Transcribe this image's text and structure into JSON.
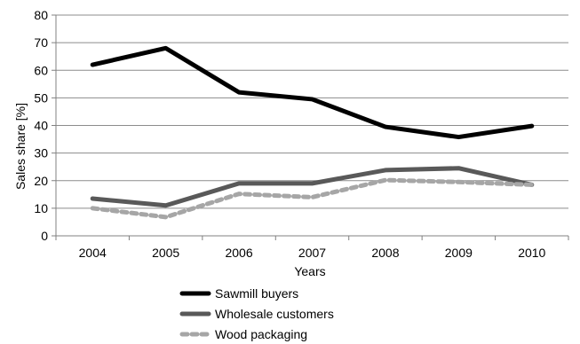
{
  "chart_data": {
    "type": "line",
    "title": "",
    "xlabel": "Years",
    "ylabel": "Sales share [%]",
    "ylim": [
      0,
      80
    ],
    "yticks": [
      0,
      10,
      20,
      30,
      40,
      50,
      60,
      70,
      80
    ],
    "categories": [
      "2004",
      "2005",
      "2006",
      "2007",
      "2008",
      "2009",
      "2010"
    ],
    "grid": "horizontal",
    "legend_position": "bottom",
    "series": [
      {
        "name": "Sawmill buyers",
        "values": [
          62,
          68,
          52,
          49.5,
          39.5,
          35.8,
          39.8
        ],
        "color": "#000000",
        "style": "solid"
      },
      {
        "name": "Wholesale customers",
        "values": [
          13.5,
          11,
          19,
          19,
          23.8,
          24.5,
          18.5
        ],
        "color": "#595959",
        "style": "solid"
      },
      {
        "name": "Wood packaging",
        "values": [
          10,
          6.8,
          15.2,
          14,
          20.2,
          19.5,
          18.5
        ],
        "color": "#a6a6a6",
        "style": "dotted"
      }
    ]
  }
}
